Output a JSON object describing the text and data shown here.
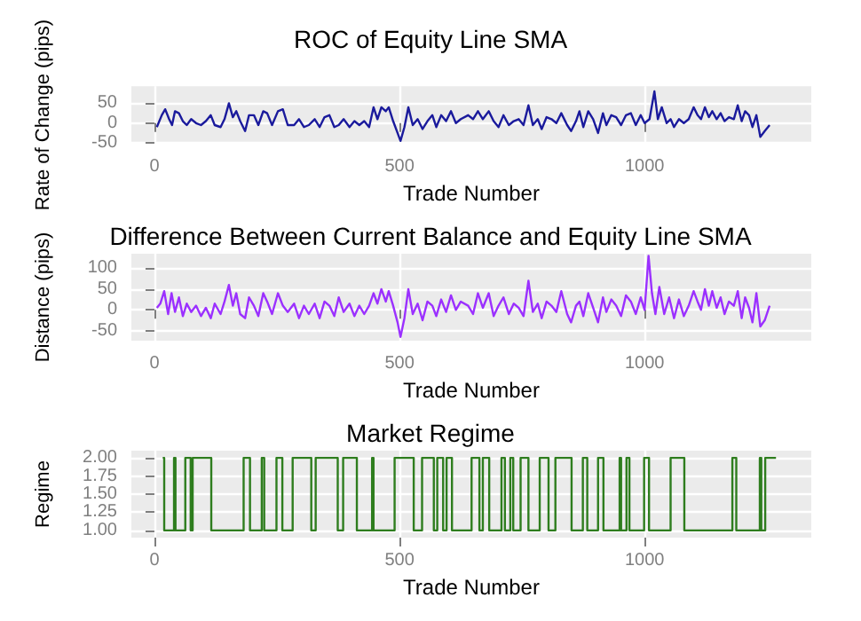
{
  "chart_data": [
    {
      "type": "line",
      "title": "ROC of Equity Line SMA",
      "xlabel": "Trade Number",
      "ylabel": "Rate of Change (pips)",
      "xlim": [
        -47,
        1340
      ],
      "xticks": [
        0,
        500,
        1000
      ],
      "ylim": [
        -52,
        93
      ],
      "yticks": [
        -50,
        0,
        50
      ],
      "grid": true,
      "series": [
        {
          "color": "#1a1a9c",
          "x": [
            5,
            15,
            22,
            30,
            36,
            42,
            50,
            58,
            66,
            75,
            85,
            95,
            105,
            115,
            123,
            135,
            143,
            152,
            160,
            167,
            175,
            185,
            193,
            203,
            212,
            222,
            230,
            240,
            252,
            262,
            272,
            285,
            295,
            305,
            315,
            327,
            337,
            347,
            357,
            367,
            376,
            386,
            398,
            408,
            418,
            428,
            438,
            447,
            455,
            463,
            472,
            478,
            487,
            496,
            502,
            510,
            518,
            527,
            537,
            547,
            557,
            567,
            575,
            585,
            595,
            605,
            615,
            625,
            640,
            650,
            660,
            670,
            682,
            692,
            702,
            712,
            723,
            733,
            743,
            753,
            763,
            772,
            782,
            790,
            800,
            810,
            820,
            830,
            842,
            850,
            860,
            867,
            875,
            885,
            895,
            905,
            915,
            922,
            932,
            942,
            952,
            962,
            972,
            982,
            992,
            1000,
            1010,
            1020,
            1027,
            1035,
            1045,
            1053,
            1060,
            1070,
            1080,
            1090,
            1100,
            1108,
            1115,
            1123,
            1131,
            1138,
            1147,
            1155,
            1163,
            1172,
            1182,
            1190,
            1198,
            1205,
            1213,
            1220,
            1228,
            1236,
            1245,
            1255
          ],
          "values": [
            -10,
            20,
            35,
            10,
            -5,
            30,
            25,
            5,
            -5,
            10,
            0,
            -5,
            5,
            20,
            -5,
            -10,
            10,
            50,
            15,
            30,
            5,
            -20,
            20,
            20,
            -5,
            30,
            25,
            -5,
            30,
            35,
            -5,
            -5,
            10,
            -10,
            -5,
            10,
            -10,
            15,
            20,
            -10,
            -5,
            10,
            -10,
            5,
            -5,
            5,
            -10,
            40,
            10,
            40,
            30,
            40,
            5,
            -25,
            -45,
            -10,
            40,
            -5,
            10,
            -15,
            5,
            20,
            -10,
            20,
            5,
            30,
            0,
            10,
            20,
            10,
            30,
            10,
            30,
            5,
            -10,
            20,
            -5,
            5,
            10,
            -5,
            45,
            -5,
            10,
            -15,
            15,
            10,
            0,
            25,
            -5,
            -20,
            5,
            30,
            -10,
            30,
            10,
            -25,
            25,
            -5,
            20,
            15,
            -5,
            20,
            25,
            -5,
            20,
            0,
            10,
            80,
            10,
            40,
            0,
            10,
            -10,
            10,
            0,
            10,
            40,
            20,
            10,
            40,
            15,
            30,
            10,
            25,
            5,
            15,
            10,
            45,
            5,
            30,
            20,
            -10,
            20,
            -35,
            -20,
            -5
          ]
        }
      ]
    },
    {
      "type": "line",
      "title": "Difference Between Current Balance and Equity Line SMA",
      "xlabel": "Trade Number",
      "ylabel": "Distance (pips)",
      "xlim": [
        -47,
        1340
      ],
      "xticks": [
        0,
        500,
        1000
      ],
      "ylim": [
        -74,
        135
      ],
      "yticks": [
        -50,
        0,
        50,
        100
      ],
      "grid": true,
      "series": [
        {
          "color": "#9b30ff",
          "x": [
            5,
            12,
            20,
            28,
            35,
            42,
            50,
            58,
            66,
            75,
            85,
            95,
            105,
            115,
            123,
            135,
            143,
            152,
            160,
            167,
            175,
            185,
            193,
            203,
            212,
            222,
            230,
            240,
            252,
            262,
            272,
            285,
            295,
            305,
            315,
            327,
            337,
            347,
            357,
            367,
            376,
            386,
            398,
            408,
            418,
            428,
            438,
            447,
            455,
            463,
            472,
            478,
            487,
            496,
            502,
            510,
            518,
            527,
            537,
            547,
            557,
            567,
            575,
            585,
            595,
            605,
            615,
            625,
            640,
            650,
            660,
            670,
            682,
            692,
            702,
            712,
            723,
            733,
            743,
            753,
            763,
            772,
            782,
            790,
            800,
            810,
            820,
            830,
            842,
            850,
            860,
            867,
            875,
            885,
            895,
            905,
            915,
            922,
            932,
            942,
            952,
            962,
            972,
            982,
            992,
            1000,
            1008,
            1015,
            1022,
            1030,
            1040,
            1050,
            1060,
            1070,
            1080,
            1090,
            1100,
            1108,
            1115,
            1123,
            1131,
            1138,
            1147,
            1155,
            1163,
            1172,
            1182,
            1190,
            1198,
            1205,
            1213,
            1220,
            1228,
            1236,
            1245,
            1255
          ],
          "values": [
            5,
            15,
            45,
            -10,
            40,
            -5,
            30,
            -15,
            15,
            -5,
            10,
            -15,
            5,
            -20,
            15,
            -10,
            20,
            60,
            10,
            40,
            -10,
            -20,
            30,
            10,
            -15,
            40,
            20,
            -10,
            40,
            10,
            -5,
            15,
            -20,
            10,
            -10,
            15,
            -20,
            20,
            10,
            -15,
            30,
            -5,
            15,
            -15,
            10,
            -10,
            10,
            40,
            15,
            50,
            20,
            45,
            10,
            -30,
            -65,
            -20,
            50,
            -10,
            15,
            -25,
            20,
            10,
            -15,
            25,
            -5,
            35,
            0,
            20,
            10,
            -10,
            40,
            5,
            40,
            -15,
            10,
            30,
            -10,
            15,
            5,
            -15,
            70,
            -5,
            15,
            -20,
            20,
            10,
            -5,
            45,
            -10,
            -30,
            10,
            20,
            -15,
            40,
            5,
            -30,
            30,
            -5,
            25,
            10,
            -15,
            35,
            20,
            -10,
            30,
            0,
            130,
            40,
            -10,
            55,
            -10,
            30,
            -20,
            25,
            -15,
            10,
            45,
            20,
            0,
            50,
            10,
            45,
            5,
            30,
            -10,
            20,
            10,
            45,
            -20,
            30,
            5,
            -30,
            40,
            -40,
            -25,
            10
          ]
        }
      ]
    },
    {
      "type": "step",
      "title": "Market Regime",
      "xlabel": "Trade Number",
      "ylabel": "Regime",
      "xlim": [
        -47,
        1340
      ],
      "xticks": [
        0,
        500,
        1000
      ],
      "ylim": [
        0.9,
        2.1
      ],
      "yticks": [
        {
          "value": 1,
          "label": "1.00"
        },
        {
          "value": 1.25,
          "label": "1.25"
        },
        {
          "value": 1.5,
          "label": "1.50"
        },
        {
          "value": 1.75,
          "label": "1.75"
        },
        {
          "value": 2,
          "label": "2.00"
        }
      ],
      "grid": true,
      "series": [
        {
          "color": "#2e7d1e",
          "x": [
            17,
            20,
            40,
            43,
            63,
            74,
            78,
            116,
            182,
            195,
            219,
            224,
            249,
            261,
            282,
            320,
            329,
            374,
            385,
            413,
            444,
            447,
            490,
            529,
            546,
            570,
            577,
            589,
            596,
            607,
            647,
            663,
            670,
            683,
            708,
            715,
            726,
            732,
            747,
            763,
            786,
            804,
            818,
            851,
            874,
            883,
            905,
            916,
            949,
            952,
            963,
            969,
            999,
            1009,
            1053,
            1081,
            1179,
            1187,
            1235,
            1238,
            1246,
            1268
          ],
          "values": [
            2,
            1,
            2,
            1,
            2,
            1,
            2,
            1,
            2,
            1,
            2,
            1,
            2,
            1,
            2,
            1,
            2,
            1,
            2,
            1,
            2,
            1,
            2,
            1,
            2,
            1,
            2,
            1,
            2,
            1,
            2,
            1,
            2,
            1,
            2,
            1,
            2,
            1,
            2,
            1,
            2,
            1,
            2,
            1,
            2,
            1,
            2,
            1,
            2,
            1,
            2,
            1,
            2,
            1,
            2,
            1,
            2,
            1,
            2,
            1,
            2,
            2
          ]
        }
      ]
    }
  ]
}
